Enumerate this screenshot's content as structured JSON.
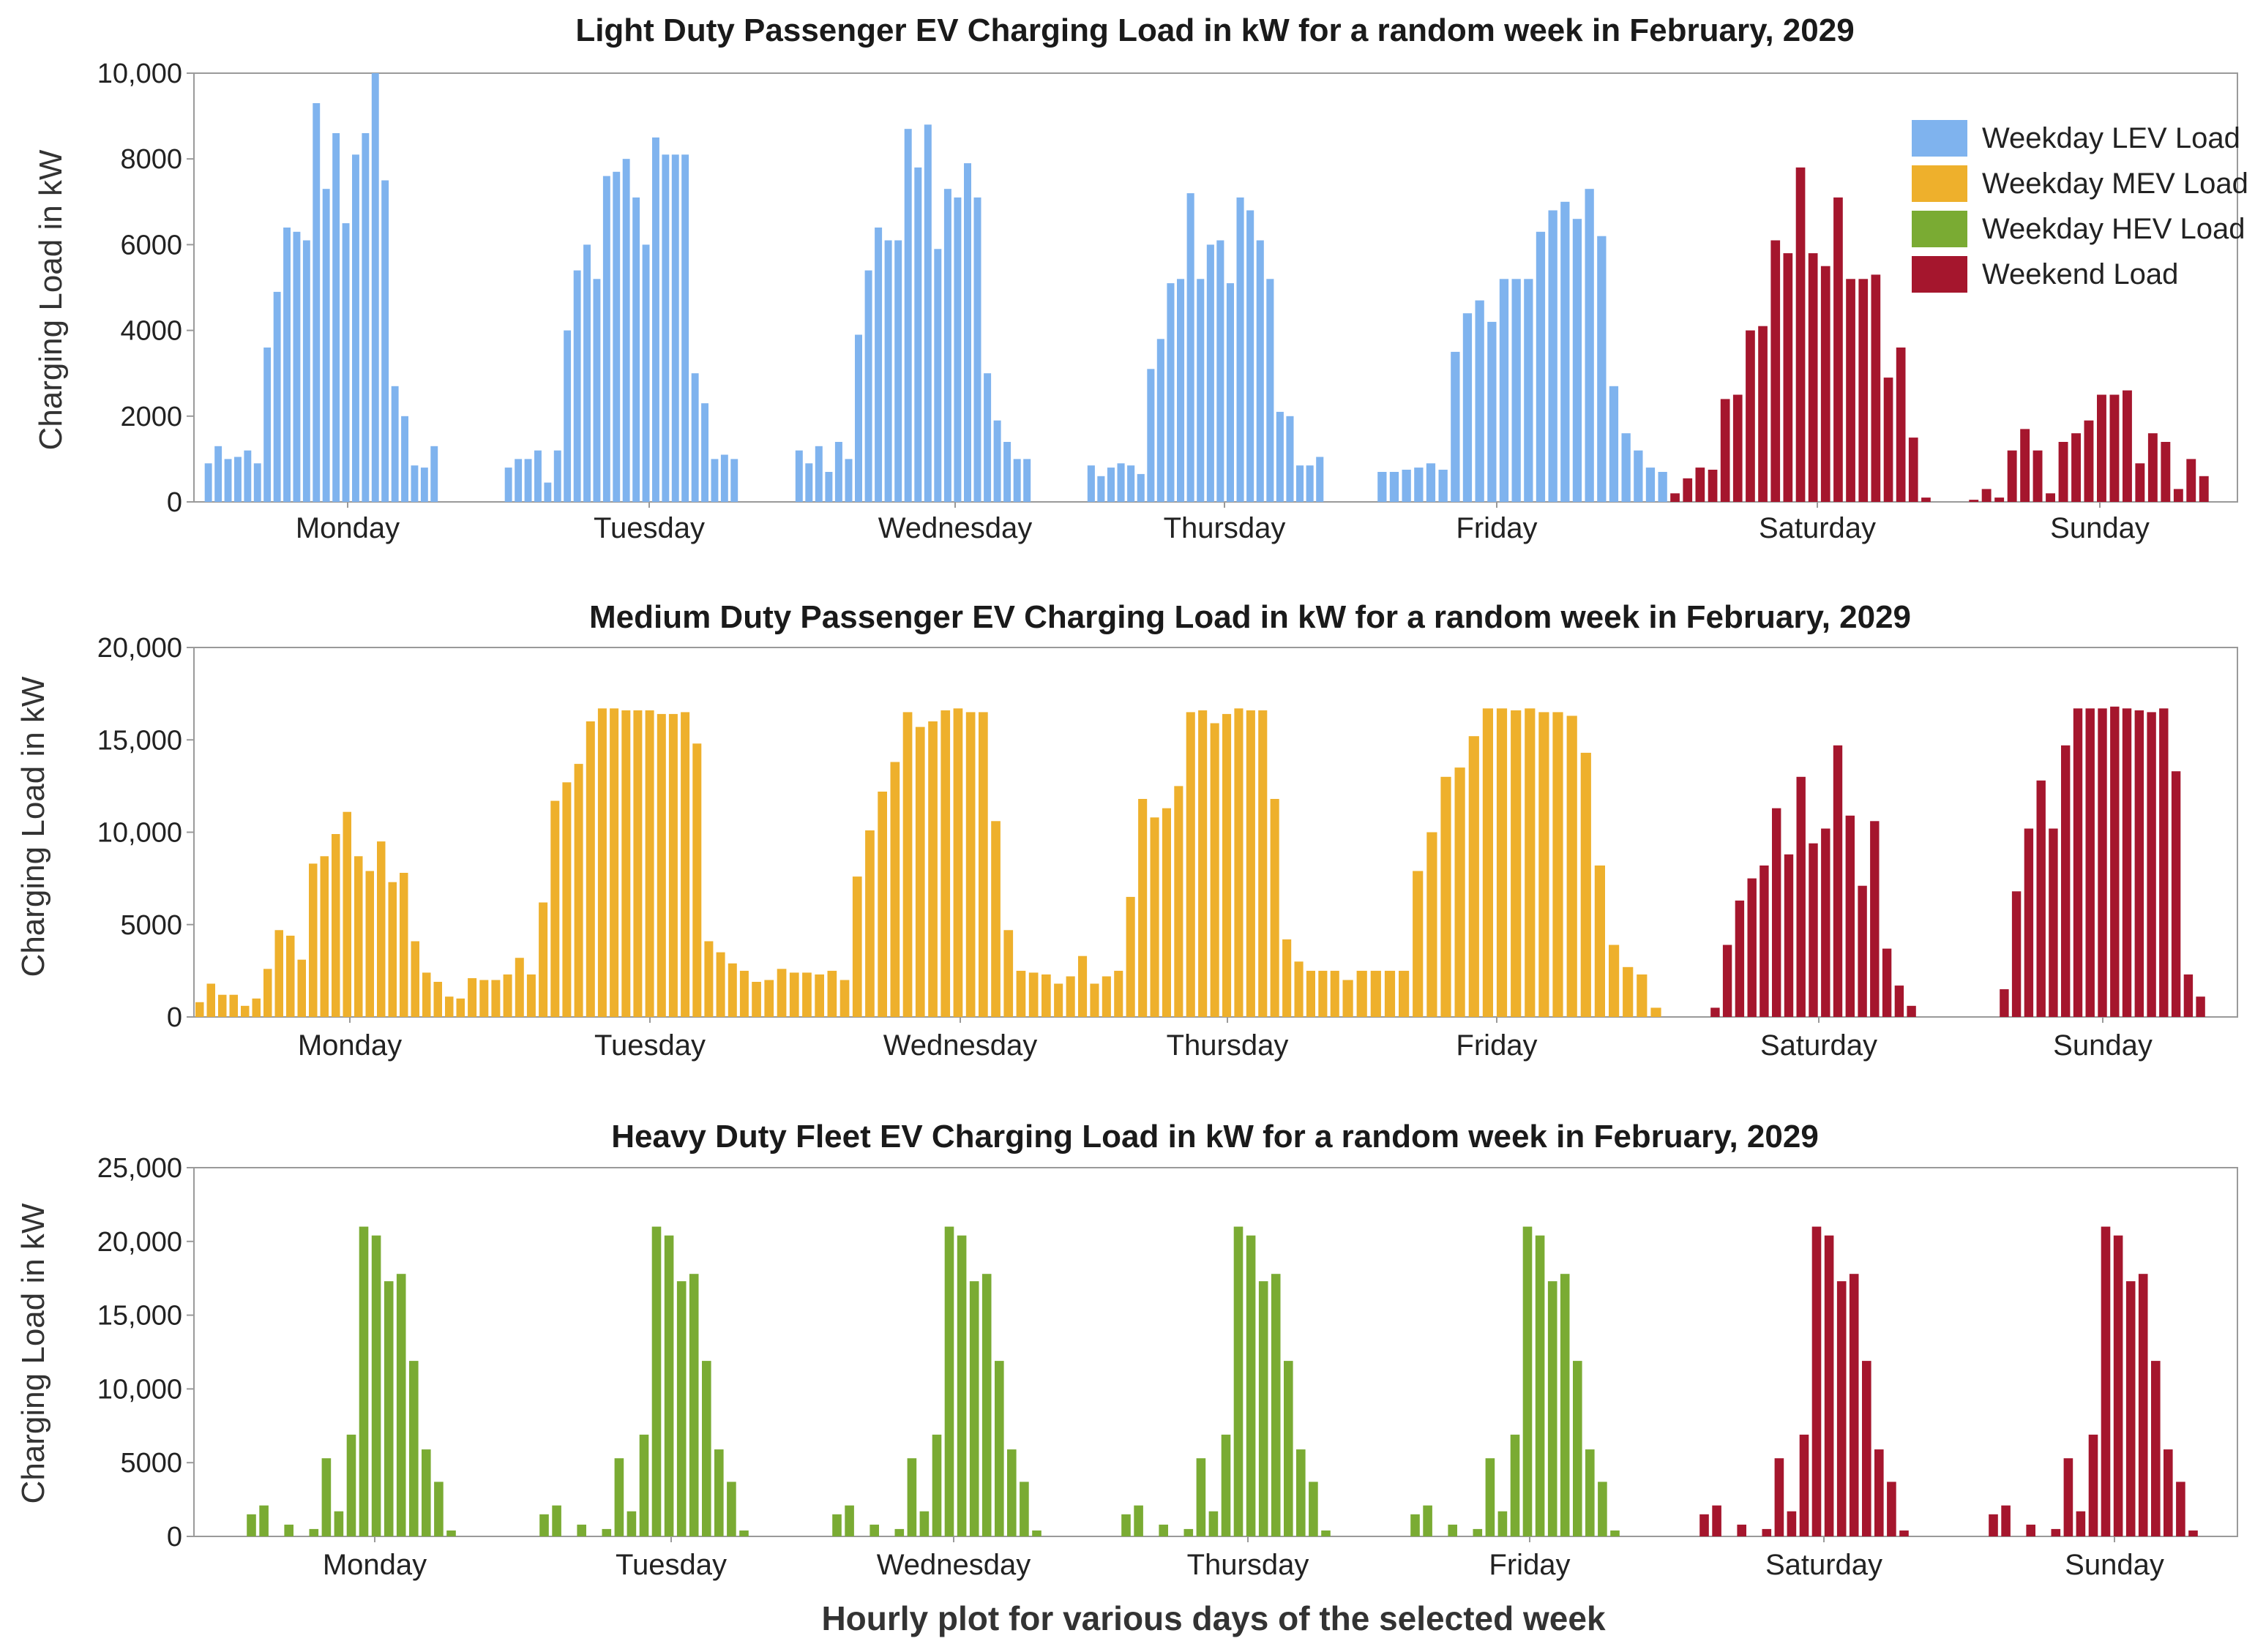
{
  "figure": {
    "xlabel": "Hourly plot for various days of the selected week"
  },
  "colors": {
    "lev": "#7fb3ee",
    "mev": "#eeb02c",
    "hev": "#7aab33",
    "weekend": "#a5162d"
  },
  "chart_data": [
    {
      "type": "bar",
      "title": "Light Duty Passenger EV Charging Load in kW for a random week in February, 2029",
      "ylabel": "Charging Load in kW",
      "ylim": [
        0,
        10000
      ],
      "yticks": [
        0,
        2000,
        4000,
        6000,
        8000,
        10000
      ],
      "ytick_labels": [
        "0",
        "2000",
        "4000",
        "6000",
        "8000",
        "10,000"
      ],
      "days": [
        "Monday",
        "Tuesday",
        "Wednesday",
        "Thursday",
        "Friday",
        "Saturday",
        "Sunday"
      ],
      "legend": [
        {
          "label": "Weekday LEV Load",
          "color_key": "lev"
        },
        {
          "label": "Weekday MEV Load",
          "color_key": "mev"
        },
        {
          "label": "Weekday HEV Load",
          "color_key": "hev"
        },
        {
          "label": "Weekend Load",
          "color_key": "weekend"
        }
      ],
      "series": [
        {
          "name": "Monday",
          "color_key": "lev",
          "values": [
            900,
            1300,
            1000,
            1050,
            1200,
            900,
            3600,
            4900,
            6400,
            6300,
            6100,
            9300,
            7300,
            8600,
            6500,
            8100,
            8600,
            10000,
            7500,
            2700,
            2000,
            850,
            800,
            1300
          ]
        },
        {
          "name": "Tuesday",
          "color_key": "lev",
          "values": [
            800,
            1000,
            1000,
            1200,
            450,
            1200,
            4000,
            5400,
            6000,
            5200,
            7600,
            7700,
            8000,
            7100,
            6000,
            8500,
            8100,
            8100,
            8100,
            3000,
            2300,
            1000,
            1100,
            1000
          ]
        },
        {
          "name": "Wednesday",
          "color_key": "lev",
          "values": [
            1200,
            900,
            1300,
            700,
            1400,
            1000,
            3900,
            5400,
            6400,
            6100,
            6100,
            8700,
            7800,
            8800,
            5900,
            7300,
            7100,
            7900,
            7100,
            3000,
            1900,
            1400,
            1000,
            1000
          ]
        },
        {
          "name": "Thursday",
          "color_key": "lev",
          "values": [
            850,
            600,
            800,
            900,
            850,
            650,
            3100,
            3800,
            5100,
            5200,
            7200,
            5200,
            6000,
            6100,
            5100,
            7100,
            6800,
            6100,
            5200,
            2100,
            2000,
            850,
            850,
            1050
          ]
        },
        {
          "name": "Friday",
          "color_key": "lev",
          "values": [
            700,
            700,
            750,
            800,
            900,
            750,
            3500,
            4400,
            4700,
            4200,
            5200,
            5200,
            5200,
            6300,
            6800,
            7000,
            6600,
            7300,
            6200,
            2700,
            1600,
            1200,
            800,
            700
          ]
        },
        {
          "name": "Saturday",
          "color_key": "weekend",
          "values": [
            200,
            550,
            800,
            750,
            2400,
            2500,
            4000,
            4100,
            6100,
            5800,
            7800,
            5800,
            5500,
            7100,
            5200,
            5200,
            5300,
            2900,
            3600,
            1500,
            100
          ]
        },
        {
          "name": "Sunday",
          "color_key": "weekend",
          "values": [
            50,
            300,
            100,
            1200,
            1700,
            1200,
            200,
            1400,
            1600,
            1900,
            2500,
            2500,
            2600,
            900,
            1600,
            1400,
            300,
            1000,
            600
          ]
        }
      ]
    },
    {
      "type": "bar",
      "title": "Medium Duty Passenger EV Charging Load in kW for a random week in February, 2029",
      "ylabel": "Charging Load in kW",
      "ylim": [
        0,
        20000
      ],
      "yticks": [
        0,
        5000,
        10000,
        15000,
        20000
      ],
      "ytick_labels": [
        "0",
        "5000",
        "10,000",
        "15,000",
        "20,000"
      ],
      "days": [
        "Monday",
        "Tuesday",
        "Wednesday",
        "Thursday",
        "Friday",
        "Saturday",
        "Sunday"
      ],
      "series": [
        {
          "name": "Monday",
          "color_key": "mev",
          "values": [
            800,
            1800,
            1200,
            1200,
            600,
            1000,
            2600,
            4700,
            4400,
            3100,
            8300,
            8700,
            9900,
            11100,
            8700,
            7900,
            9500,
            7300,
            7800,
            4100,
            2400,
            1900,
            1100,
            1000
          ]
        },
        {
          "name": "Tuesday",
          "color_key": "mev",
          "values": [
            2100,
            2000,
            2000,
            2300,
            3200,
            2300,
            6200,
            11700,
            12700,
            13700,
            16000,
            16700,
            16700,
            16600,
            16600,
            16600,
            16400,
            16400,
            16500,
            14800,
            4100,
            3500,
            2900,
            2500
          ]
        },
        {
          "name": "Wednesday",
          "color_key": "mev",
          "values": [
            1900,
            2000,
            2600,
            2400,
            2400,
            2300,
            2500,
            2000,
            7600,
            10100,
            12200,
            13800,
            16500,
            15700,
            16000,
            16600,
            16700,
            16500,
            16500,
            10600,
            4700,
            2500,
            2400,
            2300
          ]
        },
        {
          "name": "Thursday",
          "color_key": "mev",
          "values": [
            1800,
            2200,
            3300,
            1800,
            2200,
            2500,
            6500,
            11800,
            10800,
            11300,
            12500,
            16500,
            16600,
            15900,
            16400,
            16700,
            16600,
            16600,
            11800,
            4200,
            3000,
            2500,
            2500,
            2500
          ]
        },
        {
          "name": "Friday",
          "color_key": "mev",
          "values": [
            2000,
            2500,
            2500,
            2500,
            2500,
            7900,
            10000,
            13000,
            13500,
            15200,
            16700,
            16700,
            16600,
            16700,
            16500,
            16500,
            16300,
            14300,
            8200,
            3900,
            2700,
            2300,
            500
          ]
        },
        {
          "name": "Saturday",
          "color_key": "weekend",
          "values": [
            500,
            3900,
            6300,
            7500,
            8200,
            11300,
            8800,
            13000,
            9400,
            10200,
            14700,
            10900,
            7100,
            10600,
            3700,
            1700,
            600
          ]
        },
        {
          "name": "Sunday",
          "color_key": "weekend",
          "values": [
            1500,
            6800,
            10200,
            12800,
            10200,
            14700,
            16700,
            16700,
            16700,
            16800,
            16700,
            16600,
            16500,
            16700,
            13300,
            2300,
            1100
          ]
        }
      ]
    },
    {
      "type": "bar",
      "title": "Heavy Duty Fleet EV Charging Load in kW for a random week in February, 2029",
      "ylabel": "Charging Load in kW",
      "ylim": [
        0,
        25000
      ],
      "yticks": [
        0,
        5000,
        10000,
        15000,
        20000,
        25000
      ],
      "ytick_labels": [
        "0",
        "5000",
        "10,000",
        "15,000",
        "20,000",
        "25,000"
      ],
      "days": [
        "Monday",
        "Tuesday",
        "Wednesday",
        "Thursday",
        "Friday",
        "Saturday",
        "Sunday"
      ],
      "series": [
        {
          "name": "Monday",
          "color_key": "hev",
          "values": [
            1500,
            2100,
            0,
            800,
            0,
            500,
            5300,
            1700,
            6900,
            21000,
            20400,
            17300,
            17800,
            11900,
            5900,
            3700,
            400
          ]
        },
        {
          "name": "Tuesday",
          "color_key": "hev",
          "values": [
            1500,
            2100,
            0,
            800,
            0,
            500,
            5300,
            1700,
            6900,
            21000,
            20400,
            17300,
            17800,
            11900,
            5900,
            3700,
            400
          ]
        },
        {
          "name": "Wednesday",
          "color_key": "hev",
          "values": [
            1500,
            2100,
            0,
            800,
            0,
            500,
            5300,
            1700,
            6900,
            21000,
            20400,
            17300,
            17800,
            11900,
            5900,
            3700,
            400
          ]
        },
        {
          "name": "Thursday",
          "color_key": "hev",
          "values": [
            1500,
            2100,
            0,
            800,
            0,
            500,
            5300,
            1700,
            6900,
            21000,
            20400,
            17300,
            17800,
            11900,
            5900,
            3700,
            400
          ]
        },
        {
          "name": "Friday",
          "color_key": "hev",
          "values": [
            1500,
            2100,
            0,
            800,
            0,
            500,
            5300,
            1700,
            6900,
            21000,
            20400,
            17300,
            17800,
            11900,
            5900,
            3700,
            400
          ]
        },
        {
          "name": "Saturday",
          "color_key": "weekend",
          "values": [
            1500,
            2100,
            0,
            800,
            0,
            500,
            5300,
            1700,
            6900,
            21000,
            20400,
            17300,
            17800,
            11900,
            5900,
            3700,
            400
          ]
        },
        {
          "name": "Sunday",
          "color_key": "weekend",
          "values": [
            1500,
            2100,
            0,
            800,
            0,
            500,
            5300,
            1700,
            6900,
            21000,
            20400,
            17300,
            17800,
            11900,
            5900,
            3700,
            400
          ]
        }
      ]
    }
  ]
}
